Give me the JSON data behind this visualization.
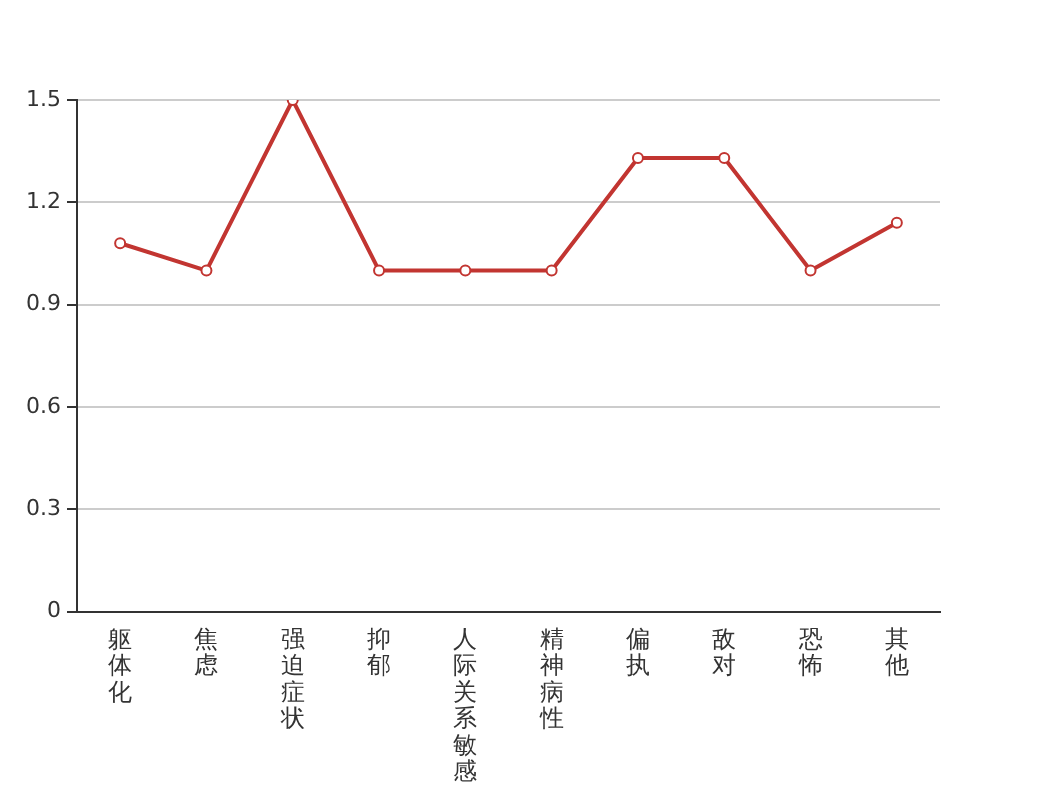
{
  "chart_data": {
    "type": "line",
    "categories": [
      "躯体化",
      "焦虑",
      "强迫症状",
      "抑郁",
      "人际关系敏感",
      "精神病性",
      "偏执",
      "敌对",
      "恐怖",
      "其他"
    ],
    "series": [
      {
        "color": "#c23531",
        "values": [
          1.08,
          1.0,
          1.5,
          1.0,
          1.0,
          1.0,
          1.33,
          1.33,
          1.0,
          1.14
        ]
      }
    ],
    "ylim": [
      0,
      1.5
    ],
    "yticks": [
      0,
      0.3,
      0.6,
      0.9,
      1.2,
      1.5
    ],
    "grid": "y",
    "legend": false,
    "marker": "circle"
  }
}
